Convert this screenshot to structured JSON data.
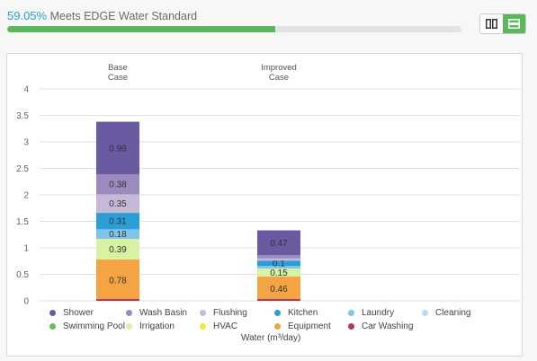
{
  "header": {
    "percent": "59.05%",
    "status_text": "Meets EDGE Water Standard",
    "progress_fraction": 0.5905
  },
  "view_toggle": {
    "columns_icon": "columns-icon",
    "rows_icon": "rows-icon",
    "active": "rows"
  },
  "chart_data": {
    "type": "bar",
    "stacked": true,
    "categories": [
      "Base\nCase",
      "Improved\nCase"
    ],
    "xlabel": "Water (m³/day)",
    "ylim": [
      0,
      4
    ],
    "yticks": [
      "0",
      "0.5",
      "1",
      "1.5",
      "2",
      "2.5",
      "3",
      "3.5",
      "4"
    ],
    "grid": true,
    "legend_position": "bottom",
    "series": [
      {
        "name": "Equipment",
        "color": "#f5a443",
        "values": [
          0.78,
          0.46
        ],
        "labels": [
          "0.78",
          "0.46"
        ]
      },
      {
        "name": "Irrigation",
        "color": "#d8f2a3",
        "values": [
          0.39,
          0.15
        ],
        "labels": [
          "0.39",
          "0.15"
        ]
      },
      {
        "name": "Laundry",
        "color": "#7fc4ea",
        "values": [
          0.18,
          0.05
        ],
        "labels": [
          "0.18",
          ""
        ]
      },
      {
        "name": "Kitchen",
        "color": "#2a9fd6",
        "values": [
          0.31,
          0.1
        ],
        "labels": [
          "0.31",
          "0.1"
        ]
      },
      {
        "name": "Flushing",
        "color": "#c4bad8",
        "values": [
          0.35,
          0.04
        ],
        "labels": [
          "0.35",
          ""
        ]
      },
      {
        "name": "Wash Basin",
        "color": "#9a8abd",
        "values": [
          0.38,
          0.06
        ],
        "labels": [
          "0.38",
          ""
        ]
      },
      {
        "name": "Shower",
        "color": "#6a5aa2",
        "values": [
          0.99,
          0.47
        ],
        "labels": [
          "0.99",
          "0.47"
        ]
      }
    ],
    "legend": [
      {
        "name": "Shower",
        "color": "#6a5aa2"
      },
      {
        "name": "Wash Basin",
        "color": "#9a8abd"
      },
      {
        "name": "Flushing",
        "color": "#c4bad8"
      },
      {
        "name": "Kitchen",
        "color": "#2a9fd6"
      },
      {
        "name": "Laundry",
        "color": "#7fc4ea"
      },
      {
        "name": "Cleaning",
        "color": "#b9dcf0"
      },
      {
        "name": "Swimming Pool",
        "color": "#6cb85a"
      },
      {
        "name": "Irrigation",
        "color": "#d8f2a3"
      },
      {
        "name": "HVAC",
        "color": "#f7e53b"
      },
      {
        "name": "Equipment",
        "color": "#f5a443"
      },
      {
        "name": "Car Washing",
        "color": "#b03a5b"
      }
    ]
  }
}
